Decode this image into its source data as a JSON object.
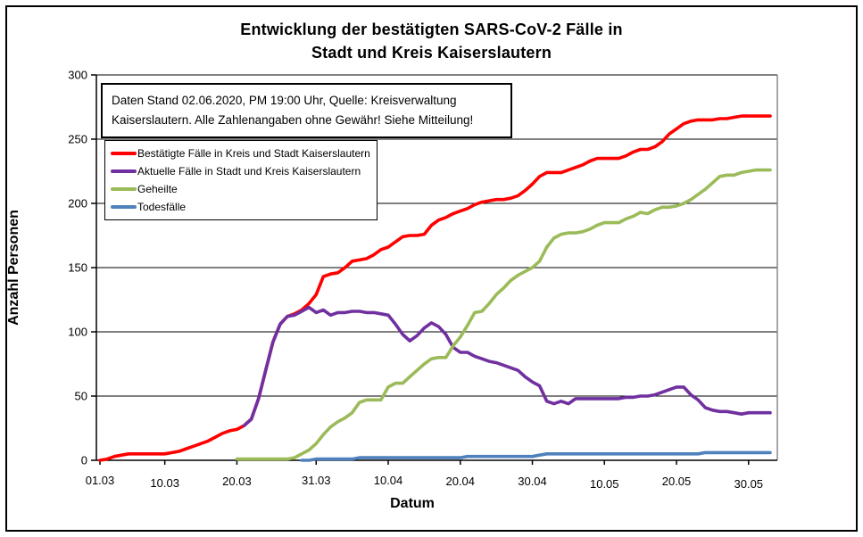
{
  "title": {
    "line1": "Entwicklung der bestätigten SARS-CoV-2 Fälle in",
    "line2": "Stadt und Kreis Kaiserslautern"
  },
  "annotation": {
    "line1": "Daten Stand 02.06.2020, PM 19:00 Uhr, Quelle: Kreisverwaltung",
    "line2": "Kaiserslautern. Alle Zahlenangaben ohne Gewähr! Siehe Mitteilung!"
  },
  "axes": {
    "y_label": "Anzahl Personen",
    "x_label": "Datum"
  },
  "chart_data": {
    "type": "line",
    "title": "Entwicklung der bestätigten SARS-CoV-2 Fälle in Stadt und Kreis Kaiserslautern",
    "xlabel": "Datum",
    "ylabel": "Anzahl Personen",
    "ylim": [
      0,
      300
    ],
    "ytick_step": 50,
    "grid": true,
    "legend_position": "top-left-inside",
    "x_axis": {
      "unit": "days since 01.03.2020",
      "start_label": "01.03",
      "end_day": 93,
      "ticks": [
        {
          "label": "01.03",
          "day": 0
        },
        {
          "label": "10.03",
          "day": 9
        },
        {
          "label": "20.03",
          "day": 19
        },
        {
          "label": "31.03",
          "day": 30
        },
        {
          "label": "10.04",
          "day": 40
        },
        {
          "label": "20.04",
          "day": 50
        },
        {
          "label": "30.04",
          "day": 60
        },
        {
          "label": "10.05",
          "day": 70
        },
        {
          "label": "20.05",
          "day": 80
        },
        {
          "label": "30.05",
          "day": 90
        }
      ]
    },
    "series": [
      {
        "name": "Bestätigte Fälle in Kreis und Stadt Kaiserslautern",
        "color": "#FF0000",
        "start_day": 0,
        "values": [
          0,
          1,
          3,
          4,
          5,
          5,
          5,
          5,
          5,
          5,
          6,
          7,
          9,
          11,
          13,
          15,
          18,
          21,
          23,
          24,
          27,
          32,
          48,
          70,
          92,
          106,
          112,
          114,
          117,
          122,
          129,
          143,
          145,
          146,
          150,
          155,
          156,
          157,
          160,
          164,
          166,
          170,
          174,
          175,
          175,
          176,
          183,
          187,
          189,
          192,
          194,
          196,
          199,
          201,
          202,
          203,
          203,
          204,
          206,
          210,
          215,
          221,
          224,
          224,
          224,
          226,
          228,
          230,
          233,
          235,
          235,
          235,
          235,
          237,
          240,
          242,
          242,
          244,
          248,
          254,
          258,
          262,
          264,
          265,
          265,
          265,
          266,
          266,
          267,
          268,
          268,
          268,
          268,
          268
        ]
      },
      {
        "name": "Aktuelle Fälle in Stadt und Kreis Kaiserslautern",
        "color": "#7030A0",
        "start_day": 20,
        "values": [
          27,
          32,
          48,
          70,
          92,
          106,
          112,
          113,
          116,
          119,
          115,
          117,
          113,
          115,
          115,
          116,
          116,
          115,
          115,
          114,
          113,
          106,
          98,
          93,
          97,
          103,
          107,
          104,
          98,
          88,
          84,
          84,
          81,
          79,
          77,
          76,
          74,
          72,
          70,
          65,
          61,
          58,
          46,
          44,
          46,
          44,
          48,
          48,
          48,
          48,
          48,
          48,
          48,
          49,
          49,
          50,
          50,
          51,
          53,
          55,
          57,
          57,
          51,
          47,
          41,
          39,
          38,
          38,
          37,
          36,
          37,
          37,
          37,
          37
        ]
      },
      {
        "name": "Geheilte",
        "color": "#9BBB59",
        "start_day": 19,
        "values": [
          1,
          1,
          1,
          1,
          1,
          1,
          1,
          1,
          2,
          5,
          8,
          13,
          20,
          26,
          30,
          33,
          37,
          45,
          47,
          47,
          47,
          57,
          60,
          60,
          65,
          70,
          75,
          79,
          80,
          80,
          89,
          96,
          105,
          115,
          116,
          122,
          129,
          134,
          140,
          144,
          147,
          150,
          155,
          166,
          173,
          176,
          177,
          177,
          178,
          180,
          183,
          185,
          185,
          185,
          188,
          190,
          193,
          192,
          195,
          197,
          197,
          198,
          200,
          203,
          207,
          211,
          216,
          221,
          222,
          222,
          224,
          225,
          226,
          226,
          226
        ]
      },
      {
        "name": "Todesfälle",
        "color": "#4F81BD",
        "start_day": 28,
        "values": [
          0,
          0,
          1,
          1,
          1,
          1,
          1,
          1,
          2,
          2,
          2,
          2,
          2,
          2,
          2,
          2,
          2,
          2,
          2,
          2,
          2,
          2,
          2,
          3,
          3,
          3,
          3,
          3,
          3,
          3,
          3,
          3,
          3,
          4,
          5,
          5,
          5,
          5,
          5,
          5,
          5,
          5,
          5,
          5,
          5,
          5,
          5,
          5,
          5,
          5,
          5,
          5,
          5,
          5,
          5,
          5,
          6,
          6,
          6,
          6,
          6,
          6,
          6,
          6,
          6,
          6
        ]
      }
    ]
  }
}
